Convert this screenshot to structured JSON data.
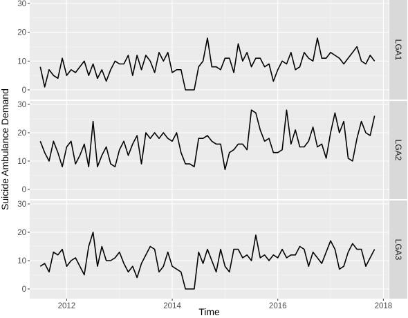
{
  "chart_data": {
    "type": "line",
    "xlabel": "Time",
    "ylabel": "Suicide Ambulance Demand",
    "ylim": [
      0,
      30
    ],
    "y_ticks": [
      0,
      10,
      20,
      30
    ],
    "x_ticks": [
      {
        "value": 2012,
        "label": "2012"
      },
      {
        "value": 2014,
        "label": "2014"
      },
      {
        "value": 2016,
        "label": "2016"
      },
      {
        "value": 2018,
        "label": "2018"
      }
    ],
    "x_range": [
      2011.3,
      2018.1
    ],
    "x_start": 2011.5,
    "x_step_months": 1,
    "grid": true,
    "facets": "rows",
    "series": [
      {
        "name": "LGA1",
        "values": [
          8,
          1,
          7,
          5,
          4,
          11,
          5,
          7,
          6,
          8,
          10,
          5,
          9,
          4,
          7,
          3,
          7,
          10,
          9,
          9,
          12,
          5,
          12,
          7,
          12,
          10,
          6,
          13,
          10,
          13,
          6,
          7,
          7,
          0,
          0,
          0,
          8,
          10,
          18,
          8,
          8,
          7,
          11,
          11,
          6,
          16,
          10,
          13,
          8,
          11,
          11,
          8,
          9,
          3,
          7,
          10,
          9,
          13,
          7,
          8,
          13,
          11,
          10,
          18,
          11,
          11,
          13,
          12,
          11,
          9,
          11,
          13,
          15,
          10,
          9,
          12,
          10
        ]
      },
      {
        "name": "LGA2",
        "values": [
          17,
          13,
          10,
          17,
          13,
          8,
          15,
          17,
          9,
          12,
          16,
          8,
          24,
          8,
          12,
          15,
          9,
          8,
          14,
          17,
          12,
          16,
          19,
          9,
          20,
          18,
          20,
          18,
          20,
          18,
          17,
          20,
          13,
          9,
          9,
          8,
          18,
          18,
          19,
          17,
          16,
          16,
          7,
          13,
          14,
          16,
          16,
          14,
          28,
          27,
          21,
          17,
          18,
          13,
          13,
          14,
          28,
          16,
          21,
          15,
          15,
          17,
          22,
          15,
          16,
          11,
          20,
          27,
          20,
          24,
          11,
          10,
          18,
          24,
          20,
          19,
          26
        ]
      },
      {
        "name": "LGA3",
        "values": [
          8,
          9,
          6,
          13,
          12,
          14,
          8,
          10,
          11,
          8,
          5,
          15,
          20,
          8,
          15,
          10,
          10,
          11,
          13,
          9,
          6,
          8,
          4,
          9,
          12,
          15,
          14,
          6,
          8,
          13,
          8,
          7,
          6,
          0,
          0,
          0,
          13,
          9,
          14,
          10,
          6,
          14,
          8,
          6,
          14,
          14,
          11,
          12,
          10,
          19,
          11,
          12,
          10,
          12,
          11,
          14,
          11,
          12,
          12,
          15,
          14,
          8,
          13,
          11,
          9,
          13,
          17,
          14,
          7,
          8,
          13,
          16,
          14,
          14,
          8,
          11,
          14
        ]
      }
    ]
  }
}
